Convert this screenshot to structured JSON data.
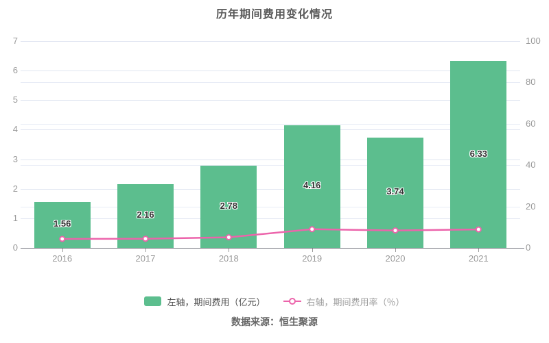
{
  "footer": {
    "source": "数据来源：恒生聚源"
  },
  "chart_data": {
    "type": "bar",
    "title": "历年期间费用变化情况",
    "categories": [
      "2016",
      "2017",
      "2018",
      "2019",
      "2020",
      "2021"
    ],
    "series": [
      {
        "name": "左轴，期间费用（亿元）",
        "type": "bar",
        "axis": "left",
        "values": [
          1.56,
          2.16,
          2.78,
          4.16,
          3.74,
          6.33
        ],
        "data_labels": [
          "1.56",
          "2.16",
          "2.78",
          "4.16",
          "3.74",
          "6.33"
        ],
        "color": "#5cbe8e"
      },
      {
        "name": "右轴，期间费用率（％）",
        "type": "line",
        "axis": "right",
        "values": [
          4.3,
          4.4,
          5.1,
          9.0,
          8.4,
          8.9
        ],
        "color": "#ec64ab"
      }
    ],
    "left_axis": {
      "min": 0,
      "max": 7,
      "ticks": [
        0,
        1,
        2,
        3,
        4,
        5,
        6,
        7
      ]
    },
    "right_axis": {
      "min": 0,
      "max": 100,
      "ticks": [
        0,
        20,
        40,
        60,
        80,
        100
      ]
    },
    "grid": true,
    "legend_position": "bottom"
  }
}
